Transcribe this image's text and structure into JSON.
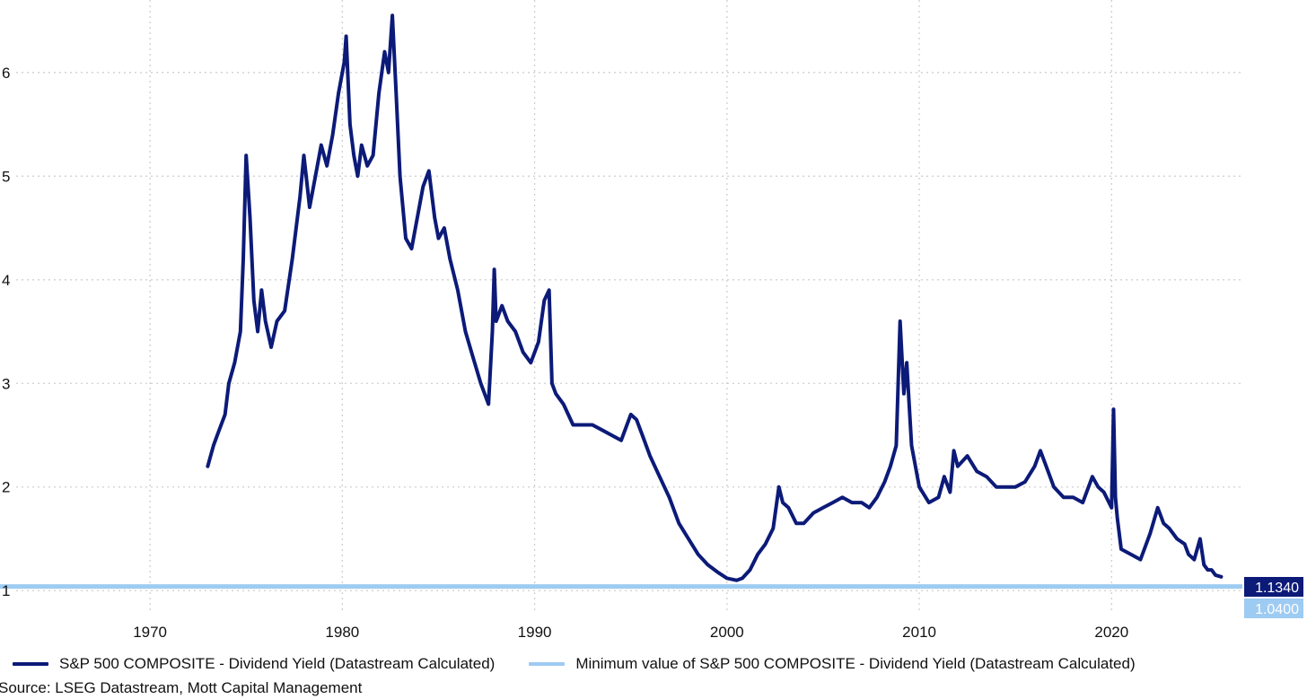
{
  "chart_data": {
    "type": "line",
    "title": "",
    "xlabel": "",
    "ylabel": "",
    "xlim": [
      1962.2,
      2026.8
    ],
    "ylim": [
      0.95,
      6.7
    ],
    "x_ticks": [
      1970,
      1980,
      1990,
      2000,
      2010,
      2020
    ],
    "y_ticks": [
      1,
      2,
      3,
      4,
      5,
      6
    ],
    "grid": true,
    "legend_position": "bottom-left",
    "series": [
      {
        "name": "S&P 500 COMPOSITE - Dividend Yield (Datastream Calculated)",
        "color": "#0c1a78",
        "last_value_label": "1.1340",
        "x": [
          1973.0,
          1973.3,
          1973.6,
          1973.9,
          1974.1,
          1974.4,
          1974.7,
          1974.85,
          1975.0,
          1975.2,
          1975.4,
          1975.6,
          1975.8,
          1976.0,
          1976.3,
          1976.6,
          1977.0,
          1977.4,
          1977.8,
          1978.0,
          1978.3,
          1978.6,
          1978.9,
          1979.2,
          1979.5,
          1979.8,
          1980.1,
          1980.2,
          1980.4,
          1980.6,
          1980.8,
          1981.0,
          1981.3,
          1981.6,
          1981.9,
          1982.2,
          1982.4,
          1982.6,
          1982.8,
          1983.0,
          1983.3,
          1983.6,
          1983.9,
          1984.2,
          1984.5,
          1984.8,
          1985.0,
          1985.3,
          1985.6,
          1986.0,
          1986.4,
          1986.8,
          1987.2,
          1987.6,
          1987.8,
          1987.9,
          1988.0,
          1988.3,
          1988.6,
          1989.0,
          1989.4,
          1989.8,
          1990.2,
          1990.5,
          1990.75,
          1990.9,
          1991.1,
          1991.5,
          1992.0,
          1992.5,
          1993.0,
          1993.5,
          1994.0,
          1994.5,
          1995.0,
          1995.3,
          1995.6,
          1996.0,
          1996.5,
          1997.0,
          1997.5,
          1998.0,
          1998.5,
          1999.0,
          1999.5,
          2000.0,
          2000.5,
          2000.8,
          2001.2,
          2001.6,
          2002.0,
          2002.4,
          2002.7,
          2002.9,
          2003.2,
          2003.6,
          2004.0,
          2004.5,
          2005.0,
          2005.5,
          2006.0,
          2006.5,
          2007.0,
          2007.4,
          2007.8,
          2008.2,
          2008.5,
          2008.8,
          2009.0,
          2009.2,
          2009.35,
          2009.6,
          2010.0,
          2010.5,
          2011.0,
          2011.3,
          2011.6,
          2011.8,
          2012.0,
          2012.5,
          2013.0,
          2013.5,
          2014.0,
          2014.5,
          2015.0,
          2015.5,
          2016.0,
          2016.3,
          2016.7,
          2017.0,
          2017.5,
          2018.0,
          2018.5,
          2019.0,
          2019.3,
          2019.6,
          2020.0,
          2020.1,
          2020.2,
          2020.3,
          2020.5,
          2021.0,
          2021.5,
          2022.0,
          2022.4,
          2022.7,
          2023.0,
          2023.4,
          2023.8,
          2024.0,
          2024.3,
          2024.6,
          2024.8,
          2025.0,
          2025.2,
          2025.4,
          2025.7
        ],
        "values": [
          2.2,
          2.4,
          2.55,
          2.7,
          3.0,
          3.2,
          3.5,
          4.2,
          5.2,
          4.6,
          3.8,
          3.5,
          3.9,
          3.6,
          3.35,
          3.6,
          3.7,
          4.2,
          4.8,
          5.2,
          4.7,
          5.0,
          5.3,
          5.1,
          5.4,
          5.8,
          6.1,
          6.35,
          5.5,
          5.2,
          5.0,
          5.3,
          5.1,
          5.2,
          5.8,
          6.2,
          6.0,
          6.55,
          5.8,
          5.0,
          4.4,
          4.3,
          4.6,
          4.9,
          5.05,
          4.6,
          4.4,
          4.5,
          4.2,
          3.9,
          3.5,
          3.25,
          3.0,
          2.8,
          3.5,
          4.1,
          3.6,
          3.75,
          3.6,
          3.5,
          3.3,
          3.2,
          3.4,
          3.8,
          3.9,
          3.0,
          2.9,
          2.8,
          2.6,
          2.6,
          2.6,
          2.55,
          2.5,
          2.45,
          2.7,
          2.65,
          2.5,
          2.3,
          2.1,
          1.9,
          1.65,
          1.5,
          1.35,
          1.25,
          1.18,
          1.12,
          1.1,
          1.12,
          1.2,
          1.35,
          1.45,
          1.6,
          2.0,
          1.85,
          1.8,
          1.65,
          1.65,
          1.75,
          1.8,
          1.85,
          1.9,
          1.85,
          1.85,
          1.8,
          1.9,
          2.05,
          2.2,
          2.4,
          3.6,
          2.9,
          3.2,
          2.4,
          2.0,
          1.85,
          1.9,
          2.1,
          1.95,
          2.35,
          2.2,
          2.3,
          2.15,
          2.1,
          2.0,
          2.0,
          2.0,
          2.05,
          2.2,
          2.35,
          2.15,
          2.0,
          1.9,
          1.9,
          1.85,
          2.1,
          2.0,
          1.95,
          1.8,
          2.75,
          1.9,
          1.7,
          1.4,
          1.35,
          1.3,
          1.55,
          1.8,
          1.65,
          1.6,
          1.5,
          1.45,
          1.35,
          1.3,
          1.5,
          1.25,
          1.2,
          1.2,
          1.15,
          1.134
        ]
      },
      {
        "name": "Minimum value of S&P 500 COMPOSITE - Dividend Yield (Datastream Calculated)",
        "color": "#9ecbf2",
        "last_value_label": "1.0400",
        "x": [
          1962.2,
          2026.8
        ],
        "values": [
          1.04,
          1.04
        ]
      }
    ],
    "source": "Source: LSEG Datastream, Mott Capital Management"
  }
}
